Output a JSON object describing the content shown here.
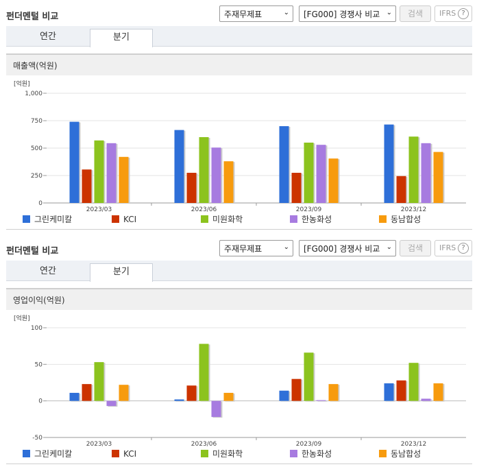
{
  "sections": [
    {
      "title": "펀더멘털 비교",
      "select1": "주재무제표",
      "select2": "[FG000] 경쟁사 비교",
      "search_label": "검색",
      "ifrs_label": "IFRS",
      "help_glyph": "?",
      "tabs": [
        "연간",
        "분기"
      ],
      "active_tab": "분기",
      "chart_header": "매출액(억원)"
    },
    {
      "title": "펀더멘털 비교",
      "select1": "주재무제표",
      "select2": "[FG000] 경쟁사 비교",
      "search_label": "검색",
      "ifrs_label": "IFRS",
      "help_glyph": "?",
      "tabs": [
        "연간",
        "분기"
      ],
      "active_tab": "분기",
      "chart_header": "영업이익(억원)"
    }
  ],
  "chart_data": [
    {
      "type": "bar",
      "unit_label": "[억원]",
      "categories": [
        "2023/03",
        "2023/06",
        "2023/09",
        "2023/12"
      ],
      "ylim": [
        0,
        1000
      ],
      "yticks": [
        0,
        250,
        500,
        750,
        1000
      ],
      "ytick_labels": [
        "0",
        "250",
        "500",
        "750",
        "1,000"
      ],
      "grid": true,
      "legend_position": "bottom",
      "series": [
        {
          "name": "그린케미칼",
          "color": "#2e6fd8",
          "values": [
            740,
            665,
            700,
            715
          ]
        },
        {
          "name": "KCI",
          "color": "#cc3300",
          "values": [
            305,
            275,
            275,
            245
          ]
        },
        {
          "name": "미원화학",
          "color": "#8cc31e",
          "values": [
            570,
            600,
            550,
            605
          ]
        },
        {
          "name": "한농화성",
          "color": "#a77be0",
          "values": [
            545,
            505,
            530,
            545
          ]
        },
        {
          "name": "동남합성",
          "color": "#f79b0e",
          "values": [
            420,
            380,
            405,
            465
          ]
        }
      ]
    },
    {
      "type": "bar",
      "unit_label": "[억원]",
      "categories": [
        "2023/03",
        "2023/06",
        "2023/09",
        "2023/12"
      ],
      "ylim": [
        -50,
        100
      ],
      "yticks": [
        -50,
        0,
        50,
        100
      ],
      "ytick_labels": [
        "-50",
        "0",
        "50",
        "100"
      ],
      "grid": true,
      "legend_position": "bottom",
      "series": [
        {
          "name": "그린케미칼",
          "color": "#2e6fd8",
          "values": [
            11,
            2,
            14,
            24
          ]
        },
        {
          "name": "KCI",
          "color": "#cc3300",
          "values": [
            23,
            21,
            30,
            28
          ]
        },
        {
          "name": "미원화학",
          "color": "#8cc31e",
          "values": [
            53,
            78,
            66,
            52
          ]
        },
        {
          "name": "한농화성",
          "color": "#a77be0",
          "values": [
            -7,
            -22,
            1,
            3
          ]
        },
        {
          "name": "동남합성",
          "color": "#f79b0e",
          "values": [
            22,
            11,
            23,
            24
          ]
        }
      ]
    }
  ]
}
